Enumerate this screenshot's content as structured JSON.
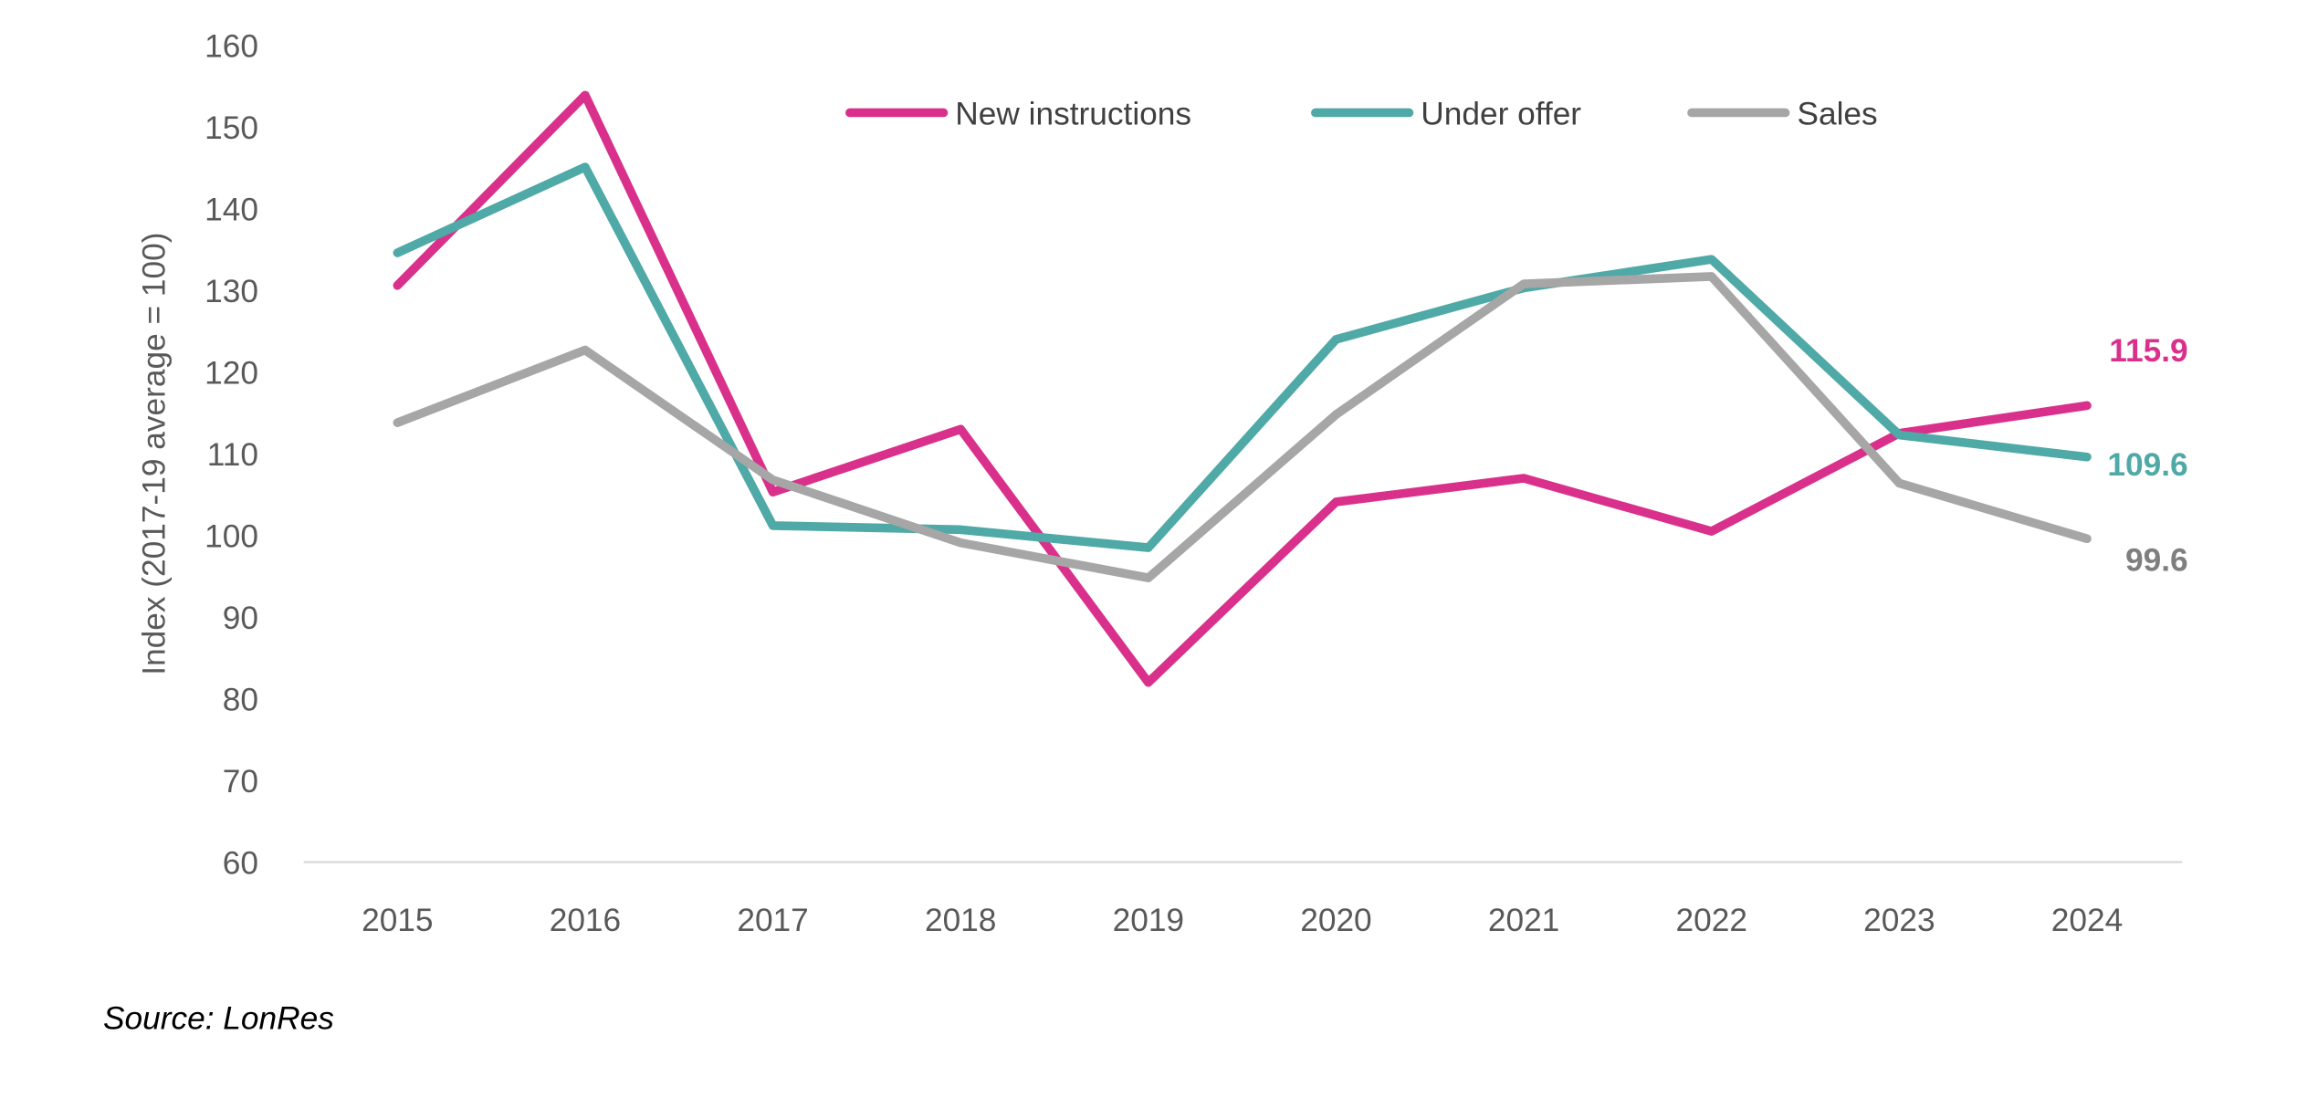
{
  "chart_data": {
    "type": "line",
    "title": "",
    "xlabel": "",
    "ylabel": "Index (2017-19 average = 100)",
    "ylim": [
      60,
      160
    ],
    "yticks": [
      60,
      70,
      80,
      90,
      100,
      110,
      120,
      130,
      140,
      150,
      160
    ],
    "categories": [
      "2015",
      "2016",
      "2017",
      "2018",
      "2019",
      "2020",
      "2021",
      "2022",
      "2023",
      "2024"
    ],
    "grid": false,
    "legend_position": "top-center",
    "series": [
      {
        "name": "New instructions",
        "color": "#D9318B",
        "values": [
          130.6,
          153.9,
          105.3,
          113.0,
          82.0,
          104.1,
          107.0,
          100.5,
          112.5,
          115.9
        ],
        "end_label": "115.9"
      },
      {
        "name": "Under offer",
        "color": "#4FA9A6",
        "values": [
          134.6,
          145.1,
          101.2,
          100.7,
          98.5,
          124.0,
          130.3,
          133.8,
          112.3,
          109.6
        ],
        "end_label": "109.6"
      },
      {
        "name": "Sales",
        "color": "#A6A6A6",
        "values": [
          113.8,
          122.7,
          106.8,
          99.1,
          94.8,
          114.8,
          130.8,
          131.7,
          106.4,
          99.6
        ],
        "end_label": "99.6"
      }
    ],
    "source": "Source: LonRes"
  }
}
